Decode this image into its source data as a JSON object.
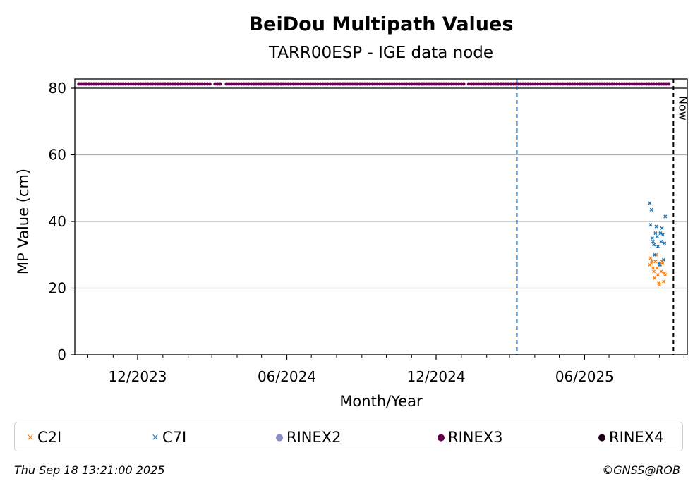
{
  "chart_data": {
    "type": "scatter",
    "title": "BeiDou Multipath Values",
    "subtitle": "TARR00ESP - IGE data node",
    "xlabel": "Month/Year",
    "ylabel": "MP Value (cm)",
    "x_range": [
      "2023-09-15",
      "2025-10-05"
    ],
    "ylim": [
      0,
      80
    ],
    "y_ticks": [
      0,
      20,
      40,
      60,
      80
    ],
    "x_ticks": [
      {
        "date": "2023-12-01",
        "label": "12/2023"
      },
      {
        "date": "2024-06-01",
        "label": "06/2024"
      },
      {
        "date": "2024-12-01",
        "label": "12/2024"
      },
      {
        "date": "2025-06-01",
        "label": "06/2025"
      }
    ],
    "grid": "horizontal",
    "legend_position": "bottom",
    "vertical_lines": [
      {
        "date": "2025-03-10",
        "color": "#1f5fa0",
        "style": "dashed",
        "label": ""
      },
      {
        "date": "2025-09-18",
        "color": "#000000",
        "style": "dashed",
        "label": "Now"
      }
    ],
    "series": [
      {
        "name": "C2I",
        "color": "#ff7f0e",
        "marker": "x",
        "points": [
          [
            "2025-08-20",
            27
          ],
          [
            "2025-08-21",
            29
          ],
          [
            "2025-08-22",
            27.5
          ],
          [
            "2025-08-23",
            28
          ],
          [
            "2025-08-24",
            26
          ],
          [
            "2025-08-25",
            25
          ],
          [
            "2025-08-26",
            23
          ],
          [
            "2025-08-27",
            28
          ],
          [
            "2025-08-28",
            30
          ],
          [
            "2025-08-29",
            26
          ],
          [
            "2025-08-30",
            24
          ],
          [
            "2025-08-31",
            21.5
          ],
          [
            "2025-09-01",
            21
          ],
          [
            "2025-09-02",
            27
          ],
          [
            "2025-09-03",
            25
          ],
          [
            "2025-09-04",
            28
          ],
          [
            "2025-09-05",
            27.5
          ],
          [
            "2025-09-06",
            22
          ],
          [
            "2025-09-07",
            24.5
          ],
          [
            "2025-09-08",
            24
          ]
        ]
      },
      {
        "name": "C7I",
        "color": "#1f77b4",
        "marker": "x",
        "points": [
          [
            "2025-08-20",
            45.5
          ],
          [
            "2025-08-21",
            39
          ],
          [
            "2025-08-22",
            43.5
          ],
          [
            "2025-08-23",
            35
          ],
          [
            "2025-08-24",
            34
          ],
          [
            "2025-08-25",
            33
          ],
          [
            "2025-08-26",
            30
          ],
          [
            "2025-08-27",
            36.5
          ],
          [
            "2025-08-28",
            38.5
          ],
          [
            "2025-08-29",
            35.5
          ],
          [
            "2025-08-30",
            32.5
          ],
          [
            "2025-08-31",
            27.5
          ],
          [
            "2025-09-01",
            27
          ],
          [
            "2025-09-02",
            36.5
          ],
          [
            "2025-09-03",
            34
          ],
          [
            "2025-09-04",
            38
          ],
          [
            "2025-09-05",
            36
          ],
          [
            "2025-09-06",
            28.5
          ],
          [
            "2025-09-07",
            33.5
          ],
          [
            "2025-09-08",
            41.5
          ]
        ]
      },
      {
        "name": "RINEX2",
        "color": "#8c8cc8",
        "marker": "dot",
        "points": []
      },
      {
        "name": "RINEX3",
        "color": "#67004f",
        "marker": "dot",
        "strip_segments": [
          [
            "2023-09-20",
            "2024-03-01"
          ],
          [
            "2024-03-05",
            "2024-03-14"
          ],
          [
            "2024-03-19",
            "2025-01-04"
          ],
          [
            "2025-01-10",
            "2025-09-15"
          ]
        ]
      },
      {
        "name": "RINEX4",
        "color": "#200018",
        "marker": "dot",
        "points": []
      }
    ]
  },
  "legend": [
    {
      "label": "C2I",
      "color": "#ff7f0e",
      "marker": "×"
    },
    {
      "label": "C7I",
      "color": "#1f77b4",
      "marker": "×"
    },
    {
      "label": "RINEX2",
      "color": "#8c8cc8",
      "marker": "●"
    },
    {
      "label": "RINEX3",
      "color": "#67004f",
      "marker": "●"
    },
    {
      "label": "RINEX4",
      "color": "#200018",
      "marker": "●"
    }
  ],
  "footer": {
    "timestamp": "Thu Sep 18 13:21:00 2025",
    "copyright": "©GNSS@ROB"
  }
}
